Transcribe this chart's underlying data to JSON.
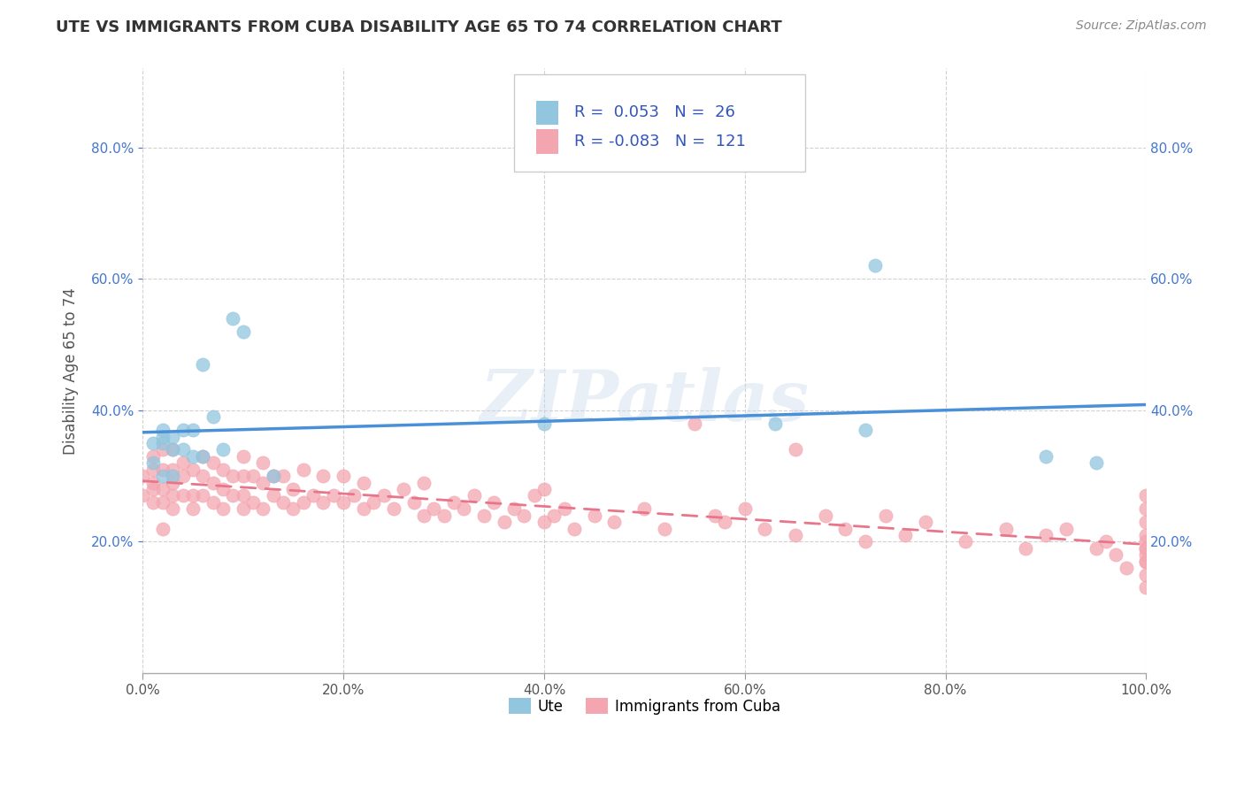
{
  "title": "UTE VS IMMIGRANTS FROM CUBA DISABILITY AGE 65 TO 74 CORRELATION CHART",
  "source_text": "Source: ZipAtlas.com",
  "ylabel": "Disability Age 65 to 74",
  "xlim": [
    0.0,
    1.0
  ],
  "ylim": [
    0.0,
    0.92
  ],
  "xtick_labels": [
    "0.0%",
    "20.0%",
    "40.0%",
    "60.0%",
    "80.0%",
    "100.0%"
  ],
  "xtick_vals": [
    0.0,
    0.2,
    0.4,
    0.6,
    0.8,
    1.0
  ],
  "ytick_labels": [
    "20.0%",
    "40.0%",
    "60.0%",
    "80.0%"
  ],
  "ytick_vals": [
    0.2,
    0.4,
    0.6,
    0.8
  ],
  "ute_color": "#92C5DE",
  "cuba_color": "#F4A6B0",
  "ute_line_color": "#4A90D9",
  "cuba_line_color": "#E8758A",
  "R_ute": 0.053,
  "N_ute": 26,
  "R_cuba": -0.083,
  "N_cuba": 121,
  "watermark": "ZIPatlas",
  "legend_label_ute": "Ute",
  "legend_label_cuba": "Immigrants from Cuba",
  "background_color": "#ffffff",
  "grid_color": "#cccccc",
  "ute_points_x": [
    0.01,
    0.01,
    0.02,
    0.02,
    0.02,
    0.02,
    0.03,
    0.03,
    0.03,
    0.04,
    0.04,
    0.05,
    0.05,
    0.06,
    0.06,
    0.07,
    0.08,
    0.09,
    0.1,
    0.13,
    0.4,
    0.63,
    0.72,
    0.73,
    0.9,
    0.95
  ],
  "ute_points_y": [
    0.32,
    0.35,
    0.3,
    0.35,
    0.36,
    0.37,
    0.3,
    0.34,
    0.36,
    0.34,
    0.37,
    0.33,
    0.37,
    0.33,
    0.47,
    0.39,
    0.34,
    0.54,
    0.52,
    0.3,
    0.38,
    0.38,
    0.37,
    0.62,
    0.33,
    0.32
  ],
  "cuba_points_x": [
    0.0,
    0.0,
    0.01,
    0.01,
    0.01,
    0.01,
    0.01,
    0.02,
    0.02,
    0.02,
    0.02,
    0.02,
    0.03,
    0.03,
    0.03,
    0.03,
    0.03,
    0.04,
    0.04,
    0.04,
    0.05,
    0.05,
    0.05,
    0.06,
    0.06,
    0.06,
    0.07,
    0.07,
    0.07,
    0.08,
    0.08,
    0.08,
    0.09,
    0.09,
    0.1,
    0.1,
    0.1,
    0.1,
    0.11,
    0.11,
    0.12,
    0.12,
    0.12,
    0.13,
    0.13,
    0.14,
    0.14,
    0.15,
    0.15,
    0.16,
    0.16,
    0.17,
    0.18,
    0.18,
    0.19,
    0.2,
    0.2,
    0.21,
    0.22,
    0.22,
    0.23,
    0.24,
    0.25,
    0.26,
    0.27,
    0.28,
    0.28,
    0.29,
    0.3,
    0.31,
    0.32,
    0.33,
    0.34,
    0.35,
    0.36,
    0.37,
    0.38,
    0.39,
    0.4,
    0.4,
    0.41,
    0.42,
    0.43,
    0.45,
    0.47,
    0.5,
    0.52,
    0.55,
    0.57,
    0.58,
    0.6,
    0.62,
    0.65,
    0.65,
    0.68,
    0.7,
    0.72,
    0.74,
    0.76,
    0.78,
    0.82,
    0.86,
    0.88,
    0.9,
    0.92,
    0.95,
    0.96,
    0.97,
    0.98,
    1.0,
    1.0,
    1.0,
    1.0,
    1.0,
    1.0,
    1.0,
    1.0,
    1.0,
    1.0,
    1.0,
    1.0
  ],
  "cuba_points_y": [
    0.27,
    0.3,
    0.26,
    0.28,
    0.29,
    0.31,
    0.33,
    0.22,
    0.26,
    0.28,
    0.31,
    0.34,
    0.25,
    0.27,
    0.29,
    0.31,
    0.34,
    0.27,
    0.3,
    0.32,
    0.25,
    0.27,
    0.31,
    0.27,
    0.3,
    0.33,
    0.26,
    0.29,
    0.32,
    0.25,
    0.28,
    0.31,
    0.27,
    0.3,
    0.25,
    0.27,
    0.3,
    0.33,
    0.26,
    0.3,
    0.25,
    0.29,
    0.32,
    0.27,
    0.3,
    0.26,
    0.3,
    0.25,
    0.28,
    0.26,
    0.31,
    0.27,
    0.26,
    0.3,
    0.27,
    0.26,
    0.3,
    0.27,
    0.25,
    0.29,
    0.26,
    0.27,
    0.25,
    0.28,
    0.26,
    0.24,
    0.29,
    0.25,
    0.24,
    0.26,
    0.25,
    0.27,
    0.24,
    0.26,
    0.23,
    0.25,
    0.24,
    0.27,
    0.23,
    0.28,
    0.24,
    0.25,
    0.22,
    0.24,
    0.23,
    0.25,
    0.22,
    0.38,
    0.24,
    0.23,
    0.25,
    0.22,
    0.21,
    0.34,
    0.24,
    0.22,
    0.2,
    0.24,
    0.21,
    0.23,
    0.2,
    0.22,
    0.19,
    0.21,
    0.22,
    0.19,
    0.2,
    0.18,
    0.16,
    0.19,
    0.23,
    0.21,
    0.15,
    0.13,
    0.2,
    0.19,
    0.17,
    0.25,
    0.18,
    0.17,
    0.27
  ]
}
